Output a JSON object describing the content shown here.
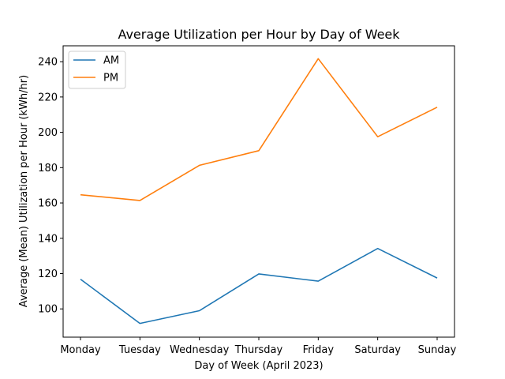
{
  "chart_data": {
    "type": "line",
    "title": "Average Utilization per Hour by Day of Week",
    "xlabel": "Day of Week (April 2023)",
    "ylabel": "Average (Mean) Utilization per Hour (kWh/hr)",
    "categories": [
      "Monday",
      "Tuesday",
      "Wednesday",
      "Thursday",
      "Friday",
      "Saturday",
      "Sunday"
    ],
    "series": [
      {
        "name": "AM",
        "color": "#1f77b4",
        "values": [
          116.8,
          91.8,
          99.0,
          119.8,
          115.7,
          134.2,
          117.5
        ]
      },
      {
        "name": "PM",
        "color": "#ff7f0e",
        "values": [
          164.6,
          161.4,
          181.3,
          189.6,
          241.7,
          197.5,
          214.2
        ]
      }
    ],
    "ylim": [
      84,
      249
    ],
    "yticks": [
      100,
      120,
      140,
      160,
      180,
      200,
      220,
      240
    ],
    "grid": false,
    "legend_position": "upper-left"
  }
}
